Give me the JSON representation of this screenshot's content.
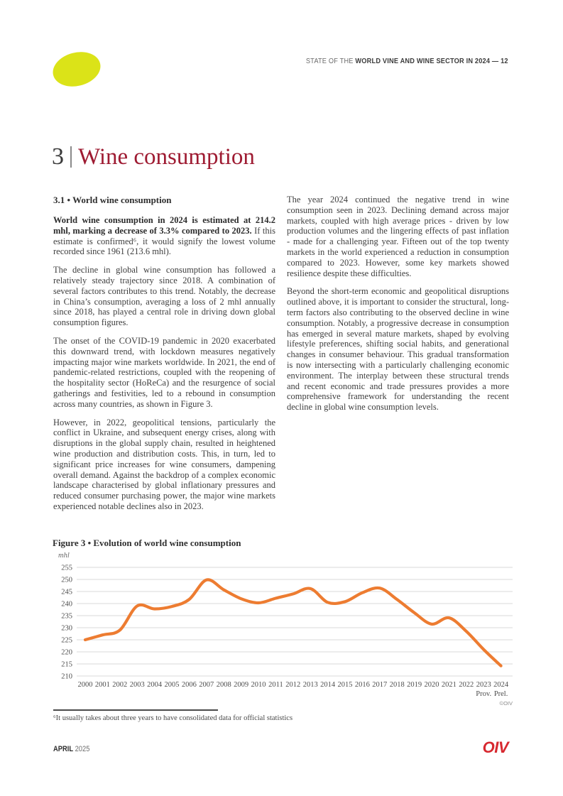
{
  "header": {
    "prefix": "STATE OF THE ",
    "title": "WORLD VINE AND WINE SECTOR IN 2024 — 12"
  },
  "chapter": {
    "number": "3",
    "title": "Wine consumption"
  },
  "section": {
    "heading": "3.1 • World wine consumption"
  },
  "left_column": {
    "p1_bold": "World wine consumption in 2024 is estimated at 214.2 mhl, marking a decrease of 3.3% compared to 2023.",
    "p1_rest": " If this estimate is confirmed⁶, it would signify the lowest volume recorded since 1961 (213.6 mhl).",
    "p2": "The decline in global wine consumption has followed a relatively steady trajectory since 2018. A combination of several factors contributes to this trend. Notably, the decrease in China’s consumption, averaging a loss of 2 mhl annually since 2018, has played a central role in driving down global consumption figures.",
    "p3": "The onset of the COVID-19 pandemic in 2020 exacerbated this downward trend, with lockdown measures negatively impacting major wine markets worldwide. In 2021, the end of pandemic-related restrictions, coupled with the reopening of the hospitality sector (HoReCa) and the resurgence of social gatherings and festivities, led to a rebound in consumption across many countries, as shown in Figure 3.",
    "p4": "However, in 2022, geopolitical tensions, particularly the conflict in Ukraine, and subsequent energy crises, along with disruptions in the global supply chain, resulted in heightened wine production and distribution costs. This, in turn, led to significant price increases for wine consumers, dampening overall demand. Against the backdrop of a complex economic landscape characterised by global inflationary pressures and reduced consumer purchasing power, the major wine markets experienced notable declines also in 2023."
  },
  "right_column": {
    "p1": "The year 2024 continued the negative trend in wine consumption seen in 2023. Declining demand across major markets, coupled with high average prices - driven by low production volumes and the lingering effects of past inflation - made for a challenging year. Fifteen out of the top twenty markets in the world experienced a reduction in consumption compared to 2023. However, some key markets showed resilience despite these difficulties.",
    "p2": "Beyond the short-term economic and geopolitical disruptions outlined above, it is important to consider the structural, long-term factors also contributing to the observed decline in wine consumption. Notably, a progressive decrease in consumption has emerged in several mature markets, shaped by evolving lifestyle preferences, shifting social habits, and generational changes in consumer behaviour. This gradual transformation is now intersecting with a particularly challenging economic environment. The interplay between these structural trends and recent economic and trade pressures provides a more comprehensive framework for understanding the recent decline in global wine consumption levels."
  },
  "figure": {
    "title": "Figure 3 • Evolution of world wine consumption",
    "credit": "©OIV"
  },
  "chart_data": {
    "type": "line",
    "title": "Figure 3 • Evolution of world wine consumption",
    "ylabel": "mhl",
    "xlabel": "",
    "categories": [
      2000,
      2001,
      2002,
      2003,
      2004,
      2005,
      2006,
      2007,
      2008,
      2009,
      2010,
      2011,
      2012,
      2013,
      2014,
      2015,
      2016,
      2017,
      2018,
      2019,
      2020,
      2021,
      2022,
      2023,
      2024
    ],
    "values": [
      225.0,
      227.0,
      229.0,
      239.0,
      237.8,
      238.8,
      241.7,
      249.8,
      245.7,
      242.0,
      240.3,
      242.2,
      244.0,
      246.2,
      240.5,
      240.8,
      244.5,
      246.4,
      241.7,
      236.2,
      231.5,
      234.1,
      228.5,
      221.0,
      214.2
    ],
    "x_sublabels": {
      "2023": "Prov.",
      "2024": "Prel."
    },
    "ylim": [
      210,
      255
    ],
    "ytick_step": 5,
    "grid": true,
    "legend": "none",
    "line_color": "#ED7C31",
    "grid_color": "#d9d9d9"
  },
  "footnote": "⁶It usually takes about three years to have consolidated data for official statistics",
  "footer": {
    "month": "APRIL",
    "year": "2025",
    "logo": "OIV"
  },
  "colors": {
    "chapter_title_red": "#9E1B32",
    "logo_ellipse_yellow": "#DBE318",
    "oiv_logo_red": "#D7282F",
    "line_orange": "#ED7C31"
  }
}
